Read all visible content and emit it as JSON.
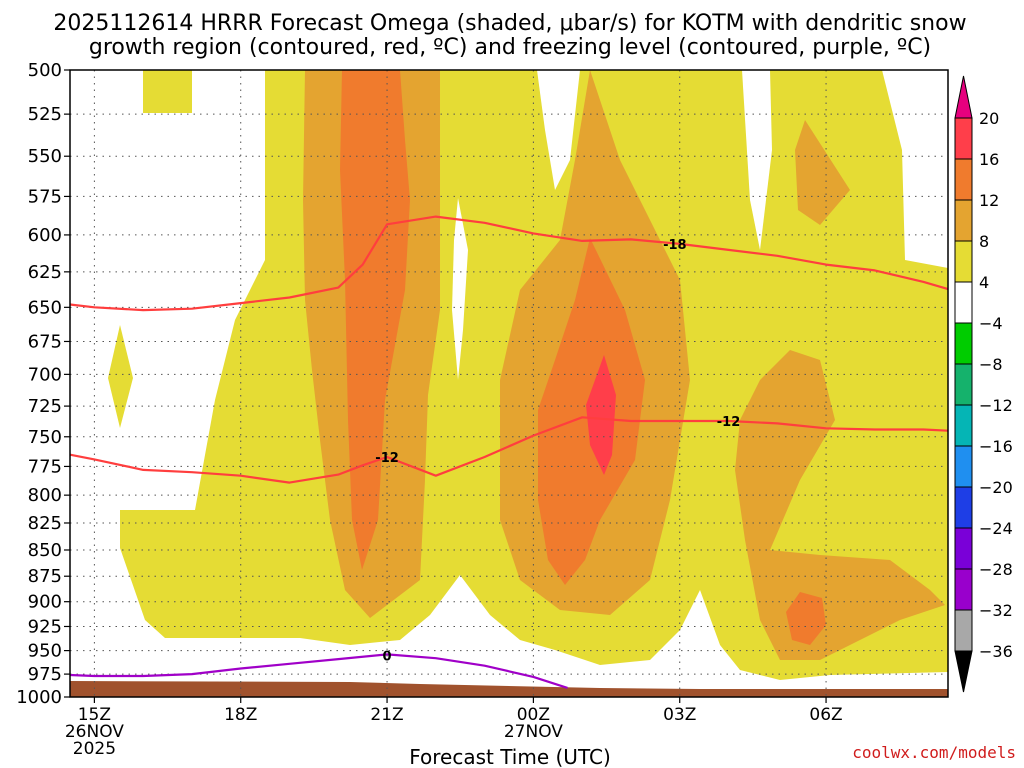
{
  "title_line1": "2025112614 HRRR Forecast Omega (shaded, μbar/s) for KOTM with dendritic snow",
  "title_line2": "growth region (contoured, red, ºC) and freezing level (contoured, purple, ºC)",
  "xlabel": "Forecast Time (UTC)",
  "credit": "coolwx.com/models",
  "chart_data": {
    "type": "contour",
    "y_axis": {
      "label": "",
      "unit": "mb",
      "ticks": [
        500,
        525,
        550,
        575,
        600,
        625,
        650,
        675,
        700,
        725,
        750,
        775,
        800,
        825,
        850,
        875,
        900,
        925,
        950,
        975,
        1000
      ],
      "range": [
        500,
        1000
      ],
      "inverted": true,
      "scale": "log"
    },
    "x_axis": {
      "range_hours": [
        14.5,
        32.5
      ],
      "ticks": [
        {
          "hour": 15,
          "label": "15Z",
          "line2": "26NOV",
          "line3": "2025"
        },
        {
          "hour": 18,
          "label": "18Z",
          "line2": "",
          "line3": ""
        },
        {
          "hour": 21,
          "label": "21Z",
          "line2": "",
          "line3": ""
        },
        {
          "hour": 24,
          "label": "00Z",
          "line2": "27NOV",
          "line3": ""
        },
        {
          "hour": 27,
          "label": "03Z",
          "line2": "",
          "line3": ""
        },
        {
          "hour": 30,
          "label": "06Z",
          "line2": "",
          "line3": ""
        }
      ]
    },
    "colorbar": {
      "labels": [
        "20",
        "16",
        "12",
        "8",
        "4",
        "−4",
        "−8",
        "−12",
        "−16",
        "−20",
        "−24",
        "−28",
        "−32",
        "−36"
      ],
      "colors": [
        "#ff3e4a",
        "#f07b2d",
        "#e4a430",
        "#e5dc34",
        "#ffffff",
        "#00cc00",
        "#15b26c",
        "#05b5b5",
        "#1f8ff0",
        "#1e3ee6",
        "#7a00d8",
        "#9900cc",
        "#a8a8a8"
      ],
      "top_arrow_color": "#e6007e",
      "bottom_arrow_color": "#000000"
    },
    "contours": [
      {
        "level": "-18",
        "color": "#ff3e3e",
        "points": [
          [
            14.5,
            648
          ],
          [
            15,
            650
          ],
          [
            16,
            652
          ],
          [
            17,
            651
          ],
          [
            18,
            647
          ],
          [
            19,
            643
          ],
          [
            20,
            636
          ],
          [
            20.5,
            620
          ],
          [
            21,
            593
          ],
          [
            22,
            588
          ],
          [
            23,
            592
          ],
          [
            24,
            599
          ],
          [
            25,
            604
          ],
          [
            26,
            603
          ],
          [
            27,
            606
          ],
          [
            28,
            610
          ],
          [
            29,
            614
          ],
          [
            30,
            620
          ],
          [
            31,
            624
          ],
          [
            32,
            632
          ],
          [
            32.5,
            637
          ]
        ],
        "labels": [
          {
            "hour": 26.9,
            "p": 606,
            "text": "-18"
          }
        ]
      },
      {
        "level": "-12",
        "color": "#ff3e3e",
        "points": [
          [
            14.5,
            765
          ],
          [
            15,
            769
          ],
          [
            16,
            778
          ],
          [
            17,
            780
          ],
          [
            18,
            783
          ],
          [
            19,
            789
          ],
          [
            20,
            782
          ],
          [
            20.5,
            774
          ],
          [
            21,
            767
          ],
          [
            22,
            783
          ],
          [
            23,
            767
          ],
          [
            24,
            749
          ],
          [
            25,
            734
          ],
          [
            26,
            737
          ],
          [
            27,
            737
          ],
          [
            28,
            737
          ],
          [
            29,
            739
          ],
          [
            30,
            743
          ],
          [
            31,
            744
          ],
          [
            32,
            744
          ],
          [
            32.5,
            745
          ]
        ],
        "labels": [
          {
            "hour": 21.0,
            "p": 767,
            "text": "-12"
          },
          {
            "hour": 28.0,
            "p": 737,
            "text": "-12"
          }
        ]
      },
      {
        "level": "0",
        "color": "#a000c8",
        "points": [
          [
            14.5,
            976
          ],
          [
            15,
            977
          ],
          [
            16,
            977
          ],
          [
            17,
            975
          ],
          [
            18,
            969
          ],
          [
            19,
            964
          ],
          [
            20,
            959
          ],
          [
            21,
            954
          ],
          [
            22,
            958
          ],
          [
            23,
            966
          ],
          [
            24,
            978
          ],
          [
            24.7,
            990
          ]
        ],
        "labels": [
          {
            "hour": 21.0,
            "p": 955,
            "text": "0"
          }
        ]
      }
    ]
  }
}
